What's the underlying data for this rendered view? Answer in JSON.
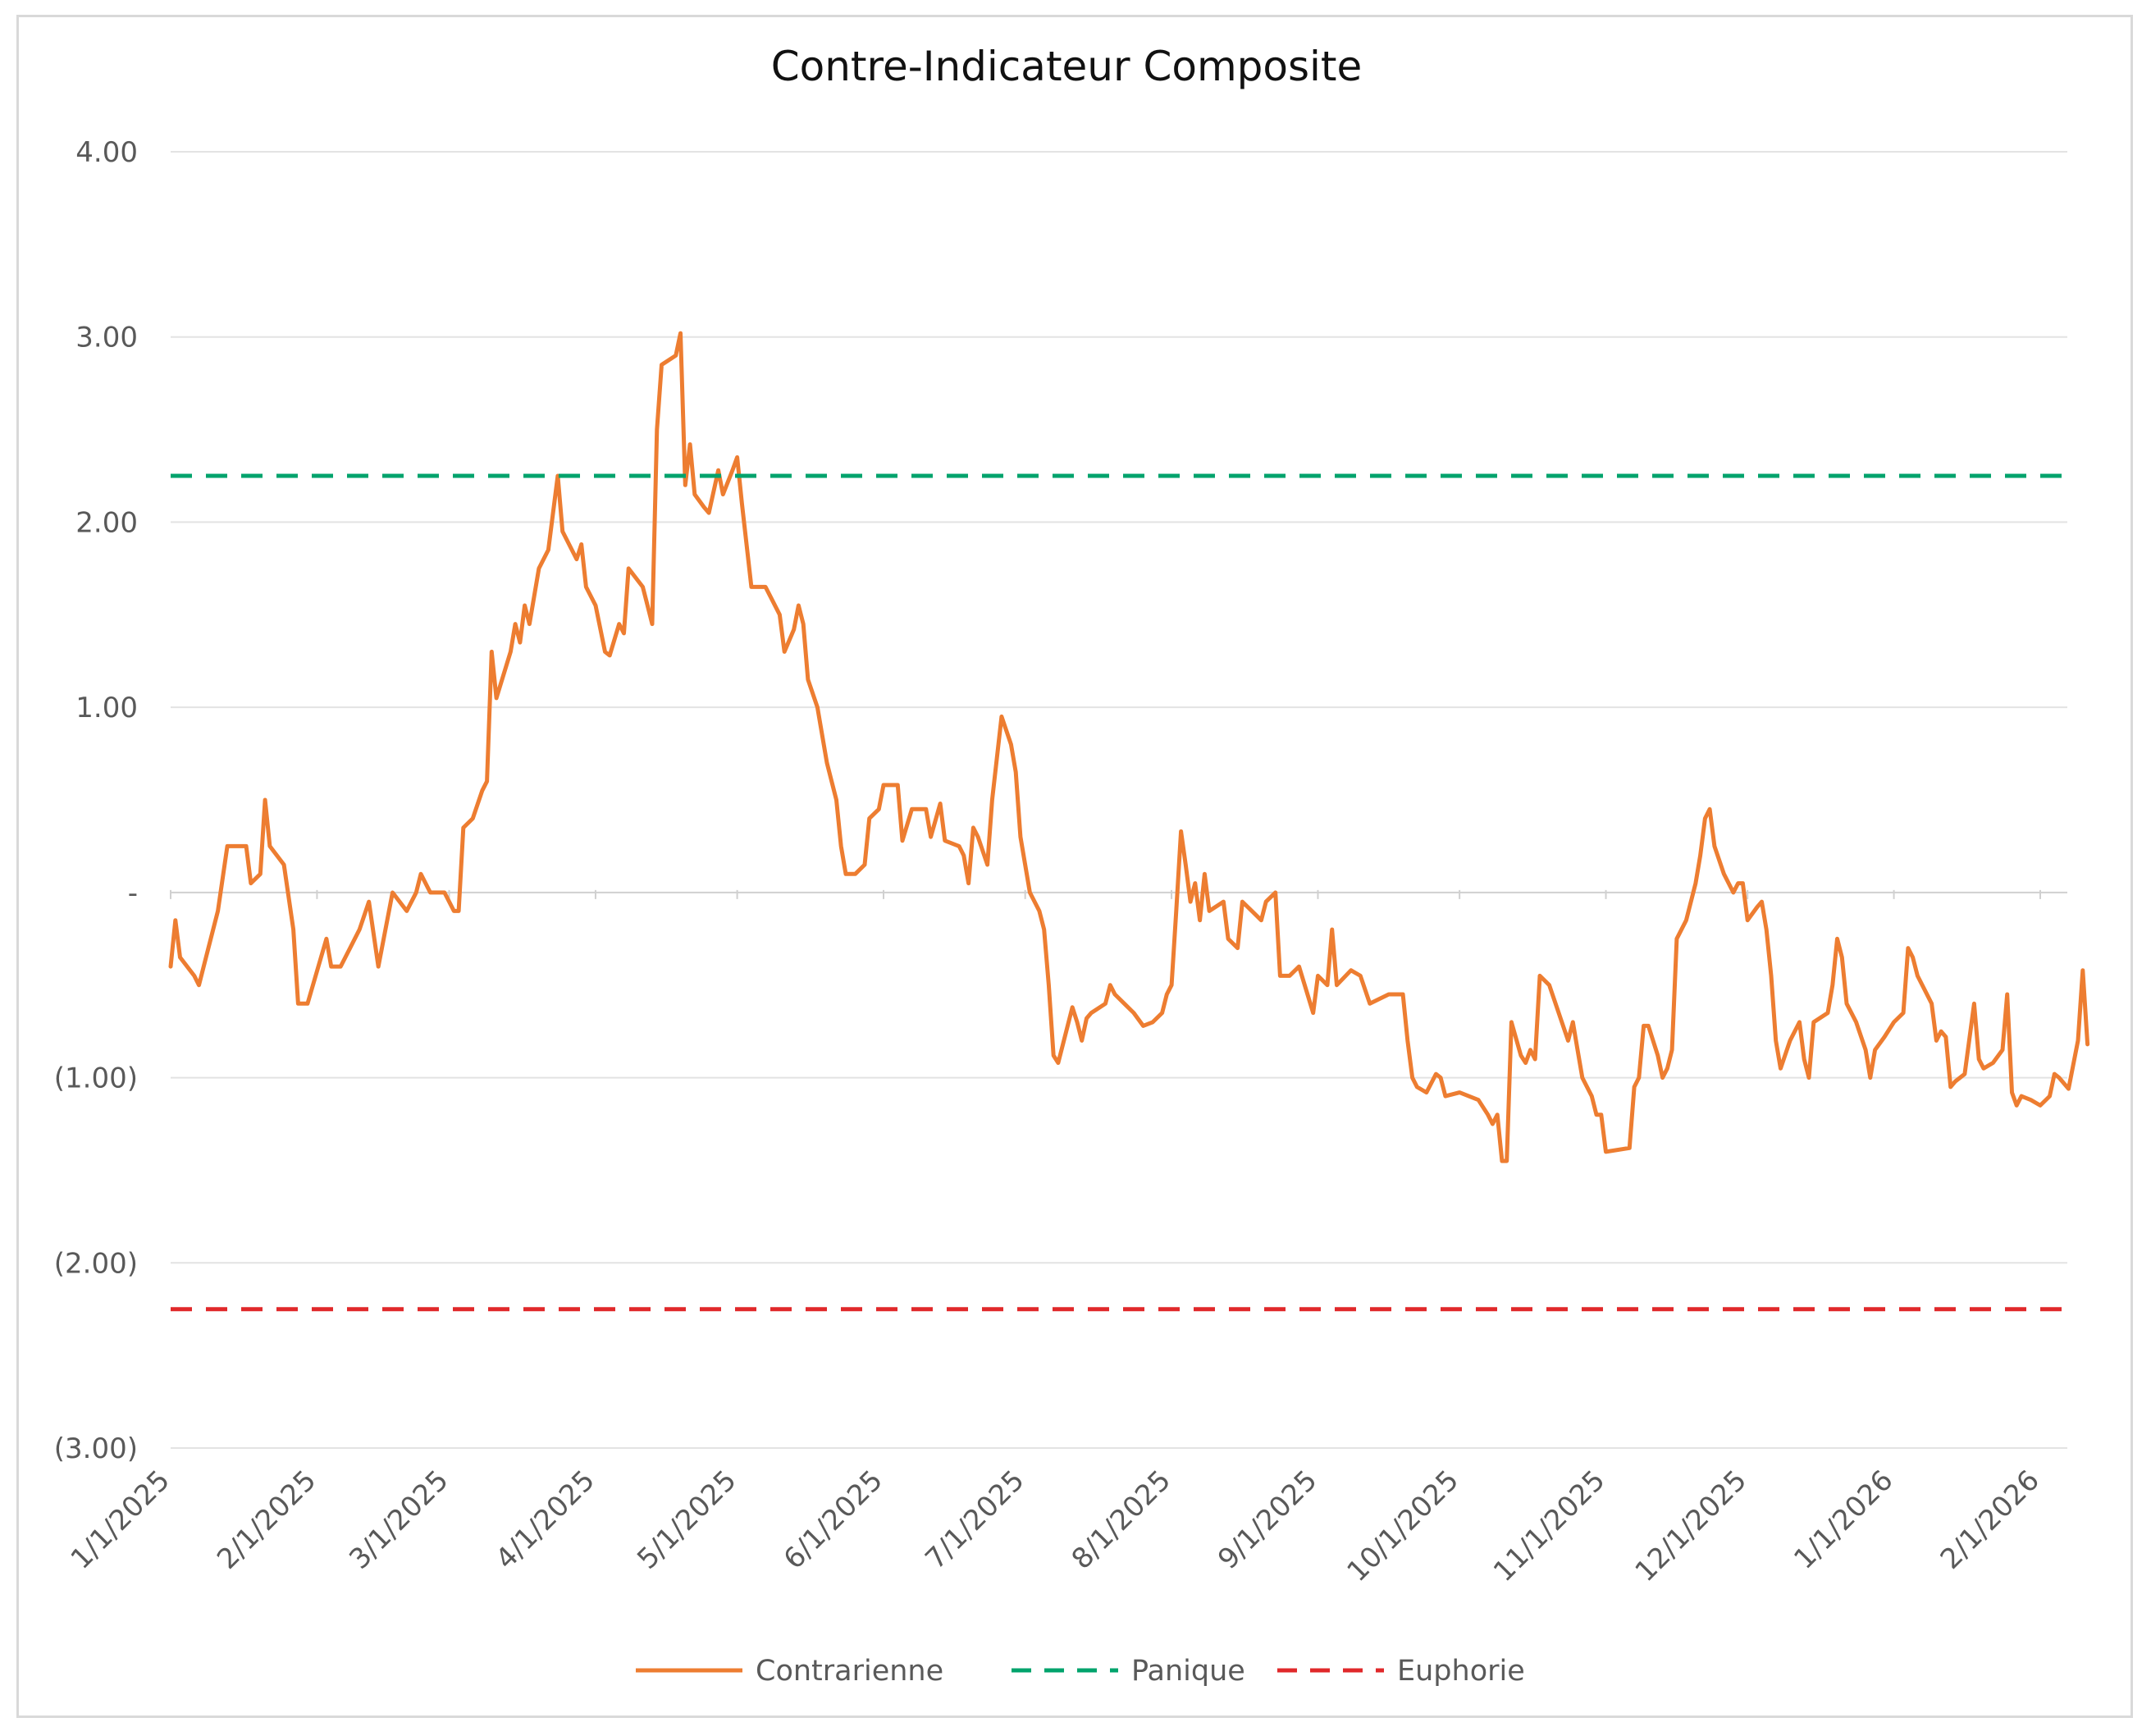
{
  "chart_data": {
    "type": "line",
    "title": "Contre-Indicateur Composite",
    "xlabel": "",
    "ylabel": "",
    "ylim": [
      -3,
      4
    ],
    "y_ticks": [
      {
        "value": 4,
        "label": "4.00"
      },
      {
        "value": 3,
        "label": "3.00"
      },
      {
        "value": 2,
        "label": "2.00"
      },
      {
        "value": 1,
        "label": "1.00"
      },
      {
        "value": 0,
        "label": "-"
      },
      {
        "value": -1,
        "label": "(1.00)"
      },
      {
        "value": -2,
        "label": "(2.00)"
      },
      {
        "value": -3,
        "label": "(3.00)"
      }
    ],
    "x_ticks": [
      "1/1/2025",
      "2/1/2025",
      "3/1/2025",
      "4/1/2025",
      "5/1/2025",
      "6/1/2025",
      "7/1/2025",
      "8/1/2025",
      "9/1/2025",
      "10/1/2025",
      "11/1/2025",
      "12/1/2025",
      "1/1/2026",
      "2/1/2026"
    ],
    "grid": "horizontal",
    "legend_position": "bottom",
    "series": [
      {
        "name": "Contrarienne",
        "style": "solid",
        "color": "#ED7D31",
        "points": [
          [
            "2025-01-01",
            -0.4
          ],
          [
            "2025-01-02",
            -0.15
          ],
          [
            "2025-01-03",
            -0.35
          ],
          [
            "2025-01-06",
            -0.45
          ],
          [
            "2025-01-07",
            -0.5
          ],
          [
            "2025-01-09",
            -0.3
          ],
          [
            "2025-01-11",
            -0.1
          ],
          [
            "2025-01-13",
            0.25
          ],
          [
            "2025-01-17",
            0.25
          ],
          [
            "2025-01-18",
            0.05
          ],
          [
            "2025-01-20",
            0.1
          ],
          [
            "2025-01-21",
            0.5
          ],
          [
            "2025-01-22",
            0.25
          ],
          [
            "2025-01-25",
            0.15
          ],
          [
            "2025-01-27",
            -0.2
          ],
          [
            "2025-01-28",
            -0.6
          ],
          [
            "2025-01-30",
            -0.6
          ],
          [
            "2025-02-03",
            -0.25
          ],
          [
            "2025-02-04",
            -0.4
          ],
          [
            "2025-02-06",
            -0.4
          ],
          [
            "2025-02-08",
            -0.3
          ],
          [
            "2025-02-10",
            -0.2
          ],
          [
            "2025-02-12",
            -0.05
          ],
          [
            "2025-02-14",
            -0.4
          ],
          [
            "2025-02-17",
            0.0
          ],
          [
            "2025-02-20",
            -0.1
          ],
          [
            "2025-02-22",
            0.0
          ],
          [
            "2025-02-23",
            0.1
          ],
          [
            "2025-02-25",
            0.0
          ],
          [
            "2025-02-28",
            0.0
          ],
          [
            "2025-03-02",
            -0.1
          ],
          [
            "2025-03-03",
            -0.1
          ],
          [
            "2025-03-04",
            0.35
          ],
          [
            "2025-03-06",
            0.4
          ],
          [
            "2025-03-08",
            0.55
          ],
          [
            "2025-03-09",
            0.6
          ],
          [
            "2025-03-10",
            1.3
          ],
          [
            "2025-03-11",
            1.05
          ],
          [
            "2025-03-14",
            1.3
          ],
          [
            "2025-03-15",
            1.45
          ],
          [
            "2025-03-16",
            1.35
          ],
          [
            "2025-03-17",
            1.55
          ],
          [
            "2025-03-18",
            1.45
          ],
          [
            "2025-03-20",
            1.75
          ],
          [
            "2025-03-22",
            1.85
          ],
          [
            "2025-03-24",
            2.25
          ],
          [
            "2025-03-25",
            1.95
          ],
          [
            "2025-03-28",
            1.8
          ],
          [
            "2025-03-29",
            1.88
          ],
          [
            "2025-03-30",
            1.65
          ],
          [
            "2025-04-01",
            1.55
          ],
          [
            "2025-04-03",
            1.3
          ],
          [
            "2025-04-04",
            1.28
          ],
          [
            "2025-04-06",
            1.45
          ],
          [
            "2025-04-07",
            1.4
          ],
          [
            "2025-04-08",
            1.75
          ],
          [
            "2025-04-11",
            1.65
          ],
          [
            "2025-04-12",
            1.55
          ],
          [
            "2025-04-13",
            1.45
          ],
          [
            "2025-04-14",
            2.5
          ],
          [
            "2025-04-15",
            2.85
          ],
          [
            "2025-04-18",
            2.9
          ],
          [
            "2025-04-19",
            3.02
          ],
          [
            "2025-04-20",
            2.2
          ],
          [
            "2025-04-21",
            2.42
          ],
          [
            "2025-04-22",
            2.15
          ],
          [
            "2025-04-24",
            2.08
          ],
          [
            "2025-04-25",
            2.05
          ],
          [
            "2025-04-27",
            2.28
          ],
          [
            "2025-04-28",
            2.15
          ],
          [
            "2025-04-30",
            2.28
          ],
          [
            "2025-05-01",
            2.35
          ],
          [
            "2025-05-02",
            2.1
          ],
          [
            "2025-05-04",
            1.65
          ],
          [
            "2025-05-07",
            1.65
          ],
          [
            "2025-05-08",
            1.6
          ],
          [
            "2025-05-10",
            1.5
          ],
          [
            "2025-05-11",
            1.3
          ],
          [
            "2025-05-13",
            1.42
          ],
          [
            "2025-05-14",
            1.55
          ],
          [
            "2025-05-15",
            1.45
          ],
          [
            "2025-05-16",
            1.15
          ],
          [
            "2025-05-18",
            1.0
          ],
          [
            "2025-05-20",
            0.7
          ],
          [
            "2025-05-22",
            0.5
          ],
          [
            "2025-05-23",
            0.25
          ],
          [
            "2025-05-24",
            0.1
          ],
          [
            "2025-05-26",
            0.1
          ],
          [
            "2025-05-28",
            0.15
          ],
          [
            "2025-05-29",
            0.4
          ],
          [
            "2025-05-31",
            0.45
          ],
          [
            "2025-06-01",
            0.58
          ],
          [
            "2025-06-04",
            0.58
          ],
          [
            "2025-06-05",
            0.28
          ],
          [
            "2025-06-07",
            0.45
          ],
          [
            "2025-06-10",
            0.45
          ],
          [
            "2025-06-11",
            0.3
          ],
          [
            "2025-06-13",
            0.48
          ],
          [
            "2025-06-14",
            0.28
          ],
          [
            "2025-06-17",
            0.25
          ],
          [
            "2025-06-18",
            0.2
          ],
          [
            "2025-06-19",
            0.05
          ],
          [
            "2025-06-20",
            0.35
          ],
          [
            "2025-06-21",
            0.3
          ],
          [
            "2025-06-23",
            0.15
          ],
          [
            "2025-06-24",
            0.5
          ],
          [
            "2025-06-26",
            0.95
          ],
          [
            "2025-06-28",
            0.8
          ],
          [
            "2025-06-29",
            0.65
          ],
          [
            "2025-06-30",
            0.3
          ],
          [
            "2025-07-02",
            0.0
          ],
          [
            "2025-07-04",
            -0.1
          ],
          [
            "2025-07-05",
            -0.2
          ],
          [
            "2025-07-06",
            -0.5
          ],
          [
            "2025-07-07",
            -0.88
          ],
          [
            "2025-07-08",
            -0.92
          ],
          [
            "2025-07-11",
            -0.62
          ],
          [
            "2025-07-12",
            -0.7
          ],
          [
            "2025-07-13",
            -0.8
          ],
          [
            "2025-07-14",
            -0.68
          ],
          [
            "2025-07-15",
            -0.65
          ],
          [
            "2025-07-18",
            -0.6
          ],
          [
            "2025-07-19",
            -0.5
          ],
          [
            "2025-07-20",
            -0.55
          ],
          [
            "2025-07-22",
            -0.6
          ],
          [
            "2025-07-24",
            -0.65
          ],
          [
            "2025-07-26",
            -0.72
          ],
          [
            "2025-07-28",
            -0.7
          ],
          [
            "2025-07-30",
            -0.65
          ],
          [
            "2025-07-31",
            -0.55
          ],
          [
            "2025-08-01",
            -0.5
          ],
          [
            "2025-08-02",
            -0.1
          ],
          [
            "2025-08-03",
            0.33
          ],
          [
            "2025-08-04",
            0.15
          ],
          [
            "2025-08-05",
            -0.05
          ],
          [
            "2025-08-06",
            0.05
          ],
          [
            "2025-08-07",
            -0.15
          ],
          [
            "2025-08-08",
            0.1
          ],
          [
            "2025-08-09",
            -0.1
          ],
          [
            "2025-08-12",
            -0.05
          ],
          [
            "2025-08-13",
            -0.25
          ],
          [
            "2025-08-15",
            -0.3
          ],
          [
            "2025-08-16",
            -0.05
          ],
          [
            "2025-08-20",
            -0.15
          ],
          [
            "2025-08-21",
            -0.05
          ],
          [
            "2025-08-23",
            0.0
          ],
          [
            "2025-08-24",
            -0.45
          ],
          [
            "2025-08-26",
            -0.45
          ],
          [
            "2025-08-28",
            -0.4
          ],
          [
            "2025-08-31",
            -0.65
          ],
          [
            "2025-09-01",
            -0.45
          ],
          [
            "2025-09-03",
            -0.5
          ],
          [
            "2025-09-04",
            -0.2
          ],
          [
            "2025-09-05",
            -0.5
          ],
          [
            "2025-09-08",
            -0.42
          ],
          [
            "2025-09-10",
            -0.45
          ],
          [
            "2025-09-12",
            -0.6
          ],
          [
            "2025-09-16",
            -0.55
          ],
          [
            "2025-09-19",
            -0.55
          ],
          [
            "2025-09-20",
            -0.8
          ],
          [
            "2025-09-21",
            -1.0
          ],
          [
            "2025-09-22",
            -1.05
          ],
          [
            "2025-09-24",
            -1.08
          ],
          [
            "2025-09-26",
            -0.98
          ],
          [
            "2025-09-27",
            -1.0
          ],
          [
            "2025-09-28",
            -1.1
          ],
          [
            "2025-10-01",
            -1.08
          ],
          [
            "2025-10-05",
            -1.12
          ],
          [
            "2025-10-07",
            -1.2
          ],
          [
            "2025-10-08",
            -1.25
          ],
          [
            "2025-10-09",
            -1.2
          ],
          [
            "2025-10-10",
            -1.45
          ],
          [
            "2025-10-11",
            -1.45
          ],
          [
            "2025-10-12",
            -0.7
          ],
          [
            "2025-10-14",
            -0.88
          ],
          [
            "2025-10-15",
            -0.92
          ],
          [
            "2025-10-16",
            -0.85
          ],
          [
            "2025-10-17",
            -0.9
          ],
          [
            "2025-10-18",
            -0.45
          ],
          [
            "2025-10-20",
            -0.5
          ],
          [
            "2025-10-22",
            -0.65
          ],
          [
            "2025-10-24",
            -0.8
          ],
          [
            "2025-10-25",
            -0.7
          ],
          [
            "2025-10-26",
            -0.85
          ],
          [
            "2025-10-27",
            -1.0
          ],
          [
            "2025-10-29",
            -1.1
          ],
          [
            "2025-10-30",
            -1.2
          ],
          [
            "2025-10-31",
            -1.2
          ],
          [
            "2025-11-01",
            -1.4
          ],
          [
            "2025-11-06",
            -1.38
          ],
          [
            "2025-11-07",
            -1.05
          ],
          [
            "2025-11-08",
            -1.0
          ],
          [
            "2025-11-09",
            -0.72
          ],
          [
            "2025-11-10",
            -0.72
          ],
          [
            "2025-11-12",
            -0.88
          ],
          [
            "2025-11-13",
            -1.0
          ],
          [
            "2025-11-14",
            -0.95
          ],
          [
            "2025-11-15",
            -0.85
          ],
          [
            "2025-11-16",
            -0.25
          ],
          [
            "2025-11-18",
            -0.15
          ],
          [
            "2025-11-20",
            0.05
          ],
          [
            "2025-11-21",
            0.2
          ],
          [
            "2025-11-22",
            0.4
          ],
          [
            "2025-11-23",
            0.45
          ],
          [
            "2025-11-24",
            0.25
          ],
          [
            "2025-11-26",
            0.1
          ],
          [
            "2025-11-28",
            0.0
          ],
          [
            "2025-11-29",
            0.05
          ],
          [
            "2025-11-30",
            0.05
          ],
          [
            "2025-12-01",
            -0.15
          ],
          [
            "2025-12-03",
            -0.08
          ],
          [
            "2025-12-04",
            -0.05
          ],
          [
            "2025-12-05",
            -0.2
          ],
          [
            "2025-12-06",
            -0.45
          ],
          [
            "2025-12-07",
            -0.8
          ],
          [
            "2025-12-08",
            -0.95
          ],
          [
            "2025-12-10",
            -0.8
          ],
          [
            "2025-12-12",
            -0.7
          ],
          [
            "2025-12-13",
            -0.9
          ],
          [
            "2025-12-14",
            -1.0
          ],
          [
            "2025-12-15",
            -0.7
          ],
          [
            "2025-12-18",
            -0.65
          ],
          [
            "2025-12-19",
            -0.5
          ],
          [
            "2025-12-20",
            -0.25
          ],
          [
            "2025-12-21",
            -0.35
          ],
          [
            "2025-12-22",
            -0.6
          ],
          [
            "2025-12-24",
            -0.7
          ],
          [
            "2025-12-26",
            -0.85
          ],
          [
            "2025-12-27",
            -1.0
          ],
          [
            "2025-12-28",
            -0.85
          ],
          [
            "2025-12-30",
            -0.78
          ],
          [
            "2026-01-01",
            -0.7
          ],
          [
            "2026-01-03",
            -0.65
          ],
          [
            "2026-01-04",
            -0.3
          ],
          [
            "2026-01-05",
            -0.35
          ],
          [
            "2026-01-06",
            -0.45
          ],
          [
            "2026-01-08",
            -0.55
          ],
          [
            "2026-01-09",
            -0.6
          ],
          [
            "2026-01-10",
            -0.8
          ],
          [
            "2026-01-11",
            -0.75
          ],
          [
            "2026-01-12",
            -0.78
          ],
          [
            "2026-01-13",
            -1.05
          ],
          [
            "2026-01-14",
            -1.02
          ],
          [
            "2026-01-16",
            -0.98
          ],
          [
            "2026-01-18",
            -0.6
          ],
          [
            "2026-01-19",
            -0.9
          ],
          [
            "2026-01-20",
            -0.95
          ],
          [
            "2026-01-22",
            -0.92
          ],
          [
            "2026-01-24",
            -0.85
          ],
          [
            "2026-01-25",
            -0.55
          ],
          [
            "2026-01-26",
            -1.08
          ],
          [
            "2026-01-27",
            -1.15
          ],
          [
            "2026-01-28",
            -1.1
          ],
          [
            "2026-01-30",
            -1.12
          ],
          [
            "2026-02-01",
            -1.15
          ],
          [
            "2026-02-03",
            -1.1
          ],
          [
            "2026-02-04",
            -0.98
          ],
          [
            "2026-02-05",
            -1.0
          ],
          [
            "2026-02-07",
            -1.06
          ],
          [
            "2026-02-09",
            -0.8
          ],
          [
            "2026-02-10",
            -0.42
          ],
          [
            "2026-02-11",
            -0.82
          ]
        ]
      },
      {
        "name": "Panique",
        "style": "dashed",
        "color": "#00A36C",
        "constant": 2.25
      },
      {
        "name": "Euphorie",
        "style": "dashed",
        "color": "#E0282A",
        "constant": -2.25
      }
    ]
  }
}
